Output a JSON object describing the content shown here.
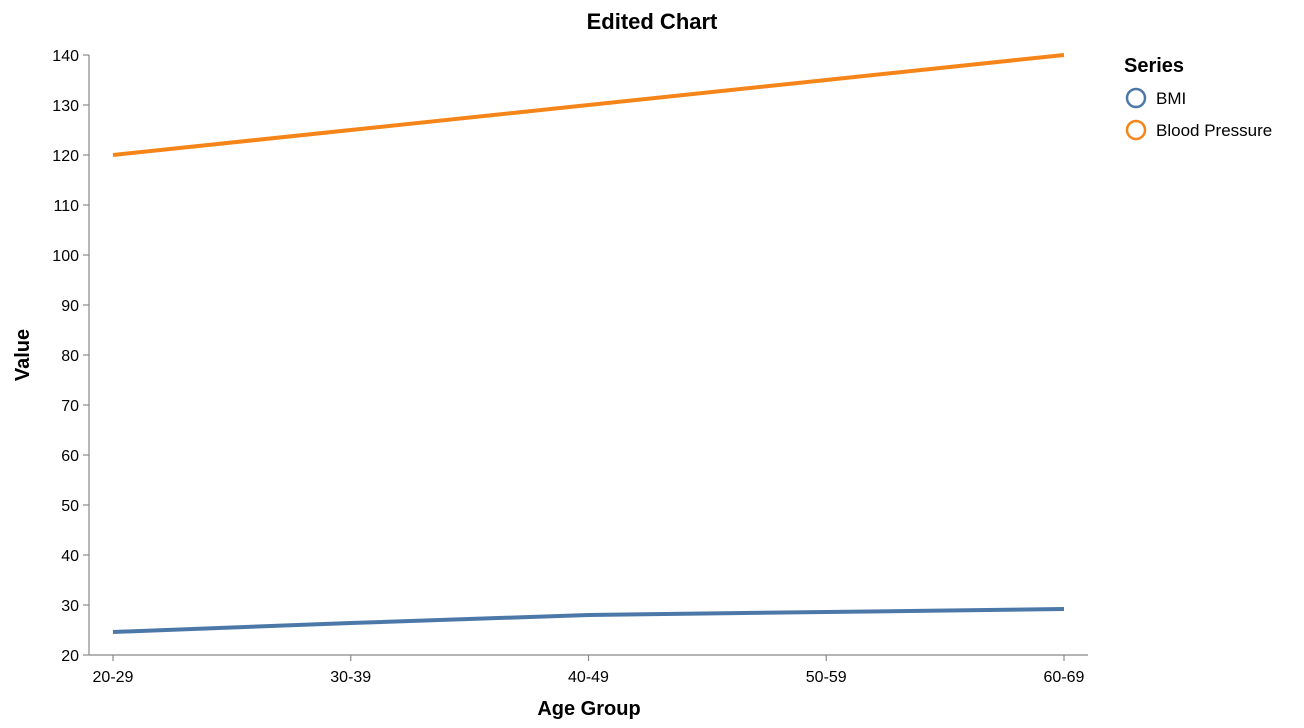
{
  "chart_data": {
    "type": "line",
    "title": "Edited Chart",
    "xlabel": "Age Group",
    "ylabel": "Value",
    "categories": [
      "20-29",
      "30-39",
      "40-49",
      "50-59",
      "60-69"
    ],
    "ylim": [
      20,
      140
    ],
    "yticks": [
      20,
      30,
      40,
      50,
      60,
      70,
      80,
      90,
      100,
      110,
      120,
      130,
      140
    ],
    "grid": false,
    "legend": {
      "title": "Series",
      "position": "top-right"
    },
    "series": [
      {
        "name": "BMI",
        "color": "#4c78a8",
        "values": [
          24.6,
          26.4,
          28.0,
          28.6,
          29.2
        ]
      },
      {
        "name": "Blood Pressure",
        "color": "#f58518",
        "values": [
          120,
          125,
          130,
          135,
          140
        ]
      }
    ]
  }
}
